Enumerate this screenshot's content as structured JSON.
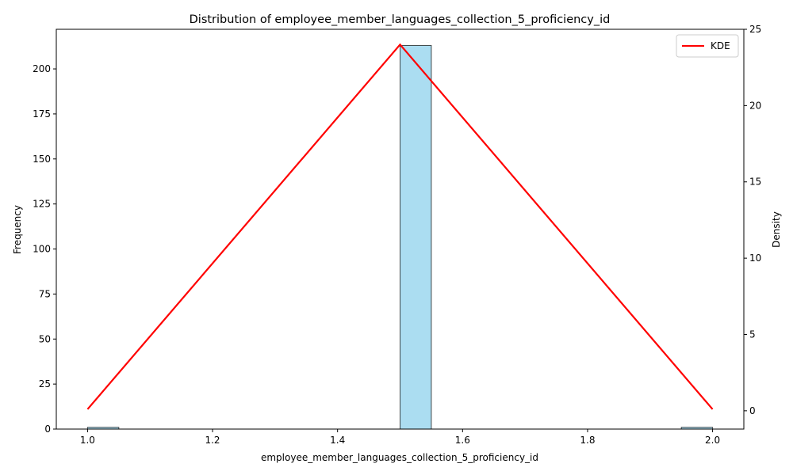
{
  "chart_data": {
    "type": "bar",
    "title": "Distribution of employee_member_languages_collection_5_proficiency_id",
    "xlabel": "employee_member_languages_collection_5_proficiency_id",
    "ylabel": "Frequency",
    "y2label": "Density",
    "xlim": [
      0.95,
      2.05
    ],
    "ylim": [
      0,
      222
    ],
    "y2lim": [
      -1.2,
      25
    ],
    "x_ticks": [
      "1.0",
      "1.2",
      "1.4",
      "1.6",
      "1.8",
      "2.0"
    ],
    "y_ticks": [
      "0",
      "25",
      "50",
      "75",
      "100",
      "125",
      "150",
      "175",
      "200"
    ],
    "y2_ticks": [
      "0",
      "5",
      "10",
      "15",
      "20",
      "25"
    ],
    "bins": [
      {
        "x0": 1.0,
        "x1": 1.05,
        "count": 1
      },
      {
        "x0": 1.5,
        "x1": 1.55,
        "count": 213
      },
      {
        "x0": 1.95,
        "x1": 2.0,
        "count": 1
      }
    ],
    "bar_color": "#87ceeb",
    "kde": {
      "name": "KDE",
      "color": "#ff0000",
      "x": [
        1.0,
        1.5,
        2.0
      ],
      "y": [
        0.1,
        24.0,
        0.1
      ]
    },
    "legend_position": "top-right",
    "grid": false
  }
}
